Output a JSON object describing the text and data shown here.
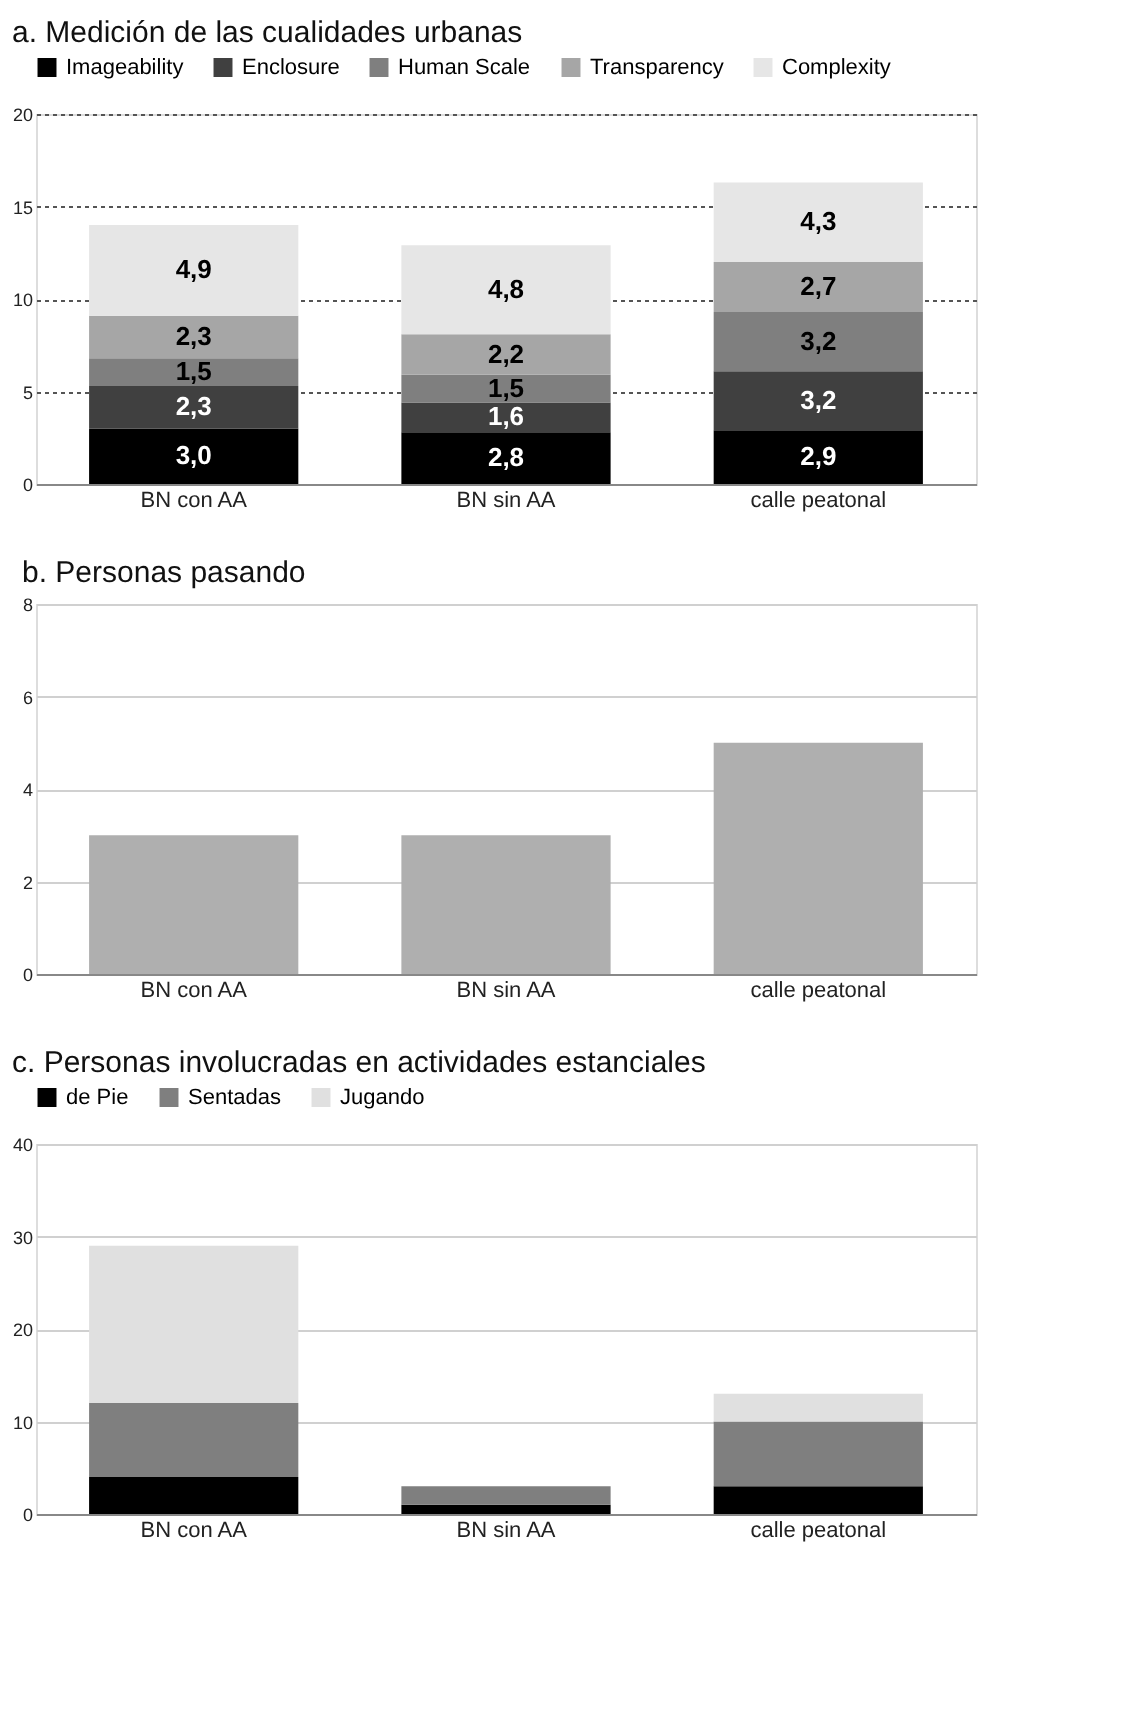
{
  "chart_data": [
    {
      "type": "bar",
      "title": "a. Medición de las cualidades urbanas",
      "categories": [
        "BN con AA",
        "BN sin AA",
        "calle peatonal"
      ],
      "stacked": true,
      "ylim": [
        0,
        20
      ],
      "yticks": [
        0,
        5,
        10,
        15,
        20
      ],
      "grid": true,
      "legend": "top",
      "series": [
        {
          "name": "Imageability",
          "color": "#000000",
          "values": [
            3.0,
            2.8,
            2.9
          ],
          "value_labels": [
            "3,0",
            "2,8",
            "2,9"
          ]
        },
        {
          "name": "Enclosure",
          "color": "#404040",
          "values": [
            2.3,
            1.6,
            3.2
          ],
          "value_labels": [
            "2,3",
            "1,6",
            "3,2"
          ]
        },
        {
          "name": "Human Scale",
          "color": "#7f7f7f",
          "values": [
            1.5,
            1.5,
            3.2
          ],
          "value_labels": [
            "1,5",
            "1,5",
            "3,2"
          ]
        },
        {
          "name": "Transparency",
          "color": "#a6a6a6",
          "values": [
            2.3,
            2.2,
            2.7
          ],
          "value_labels": [
            "2,3",
            "2,2",
            "2,7"
          ]
        },
        {
          "name": "Complexity",
          "color": "#e6e6e6",
          "values": [
            4.9,
            4.8,
            4.3
          ],
          "value_labels": [
            "4,9",
            "4,8",
            "4,3"
          ]
        }
      ]
    },
    {
      "type": "bar",
      "title": "b. Personas pasando",
      "categories": [
        "BN con AA",
        "BN sin AA",
        "calle peatonal"
      ],
      "ylim": [
        0,
        8
      ],
      "yticks": [
        0,
        2,
        4,
        6,
        8
      ],
      "grid": true,
      "series": [
        {
          "color": "#afafaf",
          "values": [
            3,
            3,
            5
          ]
        }
      ]
    },
    {
      "type": "bar",
      "title": "c. Personas involucradas en actividades estanciales",
      "categories": [
        "BN con AA",
        "BN sin AA",
        "calle peatonal"
      ],
      "stacked": true,
      "ylim": [
        0,
        40
      ],
      "yticks": [
        0,
        10,
        20,
        30,
        40
      ],
      "grid": true,
      "legend": "top left",
      "series": [
        {
          "name": "de Pie",
          "color": "#000000",
          "values": [
            4,
            1,
            3
          ]
        },
        {
          "name": "Sentadas",
          "color": "#7f7f7f",
          "values": [
            8,
            2,
            7
          ]
        },
        {
          "name": "Jugando",
          "color": "#e0e0e0",
          "values": [
            17,
            0,
            3
          ]
        }
      ]
    }
  ]
}
